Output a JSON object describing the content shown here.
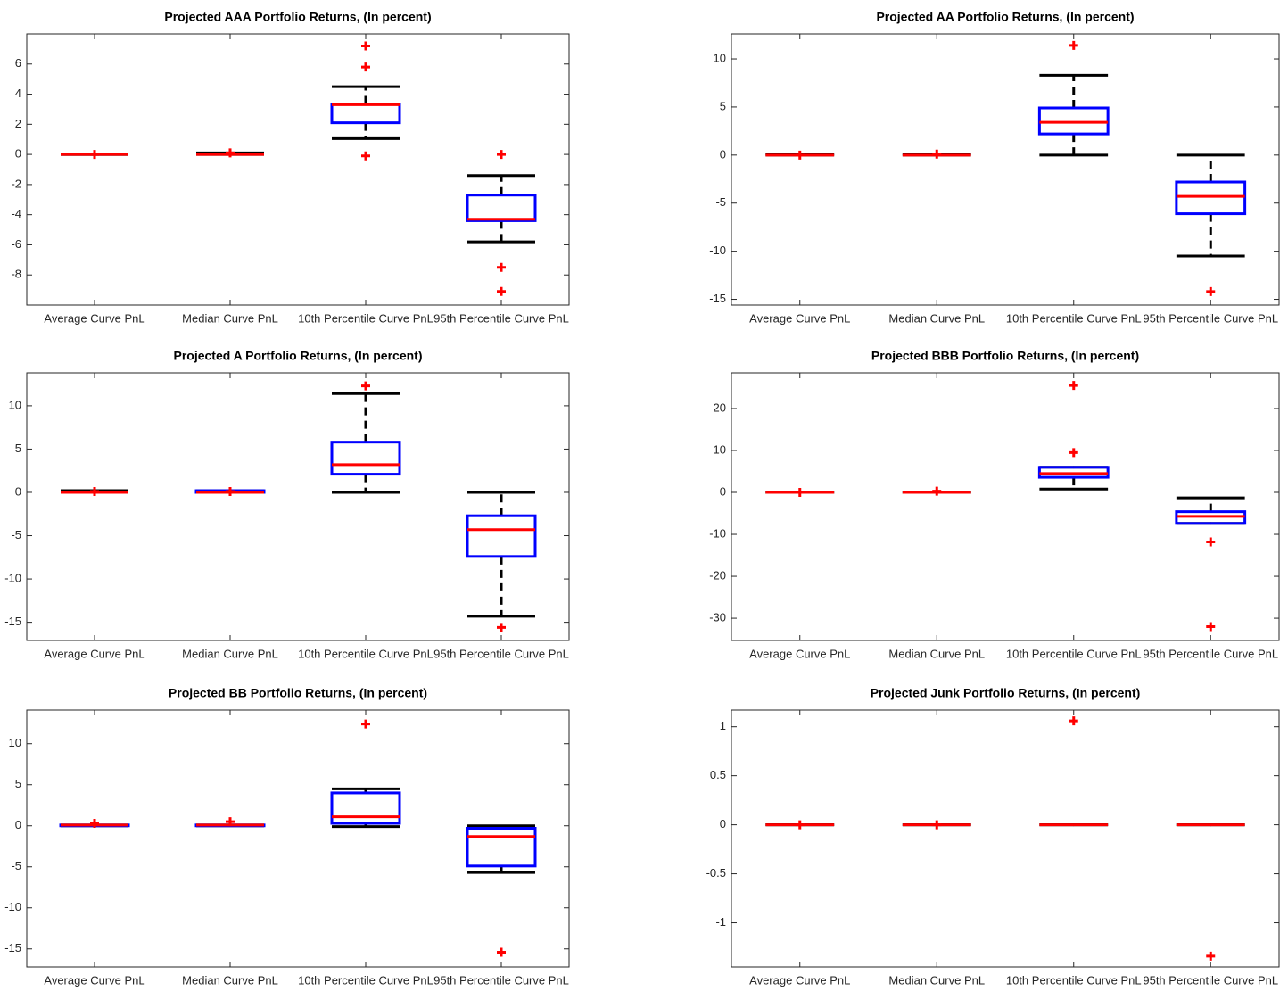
{
  "chart_data": [
    {
      "type": "box",
      "title": "Projected AAA Portfolio Returns, (In percent)",
      "categories": [
        "Average Curve PnL",
        "Median Curve PnL",
        "10th Percentile Curve PnL",
        "95th Percentile Curve PnL"
      ],
      "ylim": [
        -10,
        8
      ],
      "yticks": [
        -8,
        -6,
        -4,
        -2,
        0,
        2,
        4,
        6
      ],
      "boxes": [
        {
          "whisker_low": 0,
          "q1": 0,
          "median": 0,
          "q3": 0,
          "whisker_high": 0,
          "outliers": [
            0
          ]
        },
        {
          "whisker_low": 0,
          "q1": 0,
          "median": 0,
          "q3": 0,
          "whisker_high": 0.1,
          "outliers": [
            0.1
          ]
        },
        {
          "whisker_low": 1.05,
          "q1": 2.1,
          "median": 3.3,
          "q3": 3.35,
          "whisker_high": 4.5,
          "outliers": [
            7.2,
            5.8,
            -0.1
          ]
        },
        {
          "whisker_low": -5.8,
          "q1": -4.4,
          "median": -4.3,
          "q3": -2.7,
          "whisker_high": -1.4,
          "outliers": [
            0,
            -7.5,
            -9.1
          ]
        }
      ]
    },
    {
      "type": "box",
      "title": "Projected AA Portfolio Returns, (In percent)",
      "categories": [
        "Average Curve PnL",
        "Median Curve PnL",
        "10th Percentile Curve PnL",
        "95th Percentile Curve PnL"
      ],
      "ylim": [
        -15.6,
        12.6
      ],
      "yticks": [
        -15,
        -10,
        -5,
        0,
        5,
        10
      ],
      "boxes": [
        {
          "whisker_low": 0,
          "q1": 0,
          "median": 0,
          "q3": 0,
          "whisker_high": 0.1,
          "outliers": [
            0
          ]
        },
        {
          "whisker_low": 0,
          "q1": 0,
          "median": 0,
          "q3": 0,
          "whisker_high": 0.1,
          "outliers": [
            0.1
          ]
        },
        {
          "whisker_low": 0,
          "q1": 2.2,
          "median": 3.4,
          "q3": 4.9,
          "whisker_high": 8.3,
          "outliers": [
            11.4
          ]
        },
        {
          "whisker_low": -10.5,
          "q1": -6.1,
          "median": -4.3,
          "q3": -2.8,
          "whisker_high": 0,
          "outliers": [
            -14.2
          ]
        }
      ]
    },
    {
      "type": "box",
      "title": "Projected A Portfolio Returns, (In percent)",
      "categories": [
        "Average Curve PnL",
        "Median Curve PnL",
        "10th Percentile Curve PnL",
        "95th Percentile Curve PnL"
      ],
      "ylim": [
        -17.1,
        13.8
      ],
      "yticks": [
        -15,
        -10,
        -5,
        0,
        5,
        10
      ],
      "boxes": [
        {
          "whisker_low": 0,
          "q1": 0,
          "median": 0,
          "q3": 0,
          "whisker_high": 0.2,
          "outliers": [
            0.1
          ]
        },
        {
          "whisker_low": 0,
          "q1": 0,
          "median": 0,
          "q3": 0.2,
          "whisker_high": 0.2,
          "outliers": [
            0.1
          ]
        },
        {
          "whisker_low": 0,
          "q1": 2.1,
          "median": 3.2,
          "q3": 5.8,
          "whisker_high": 11.4,
          "outliers": [
            12.3
          ]
        },
        {
          "whisker_low": -14.3,
          "q1": -7.4,
          "median": -4.3,
          "q3": -2.7,
          "whisker_high": 0,
          "outliers": [
            -15.6
          ]
        }
      ]
    },
    {
      "type": "box",
      "title": "Projected BBB Portfolio Returns, (In percent)",
      "categories": [
        "Average Curve PnL",
        "Median Curve PnL",
        "10th Percentile Curve PnL",
        "95th Percentile Curve PnL"
      ],
      "ylim": [
        -35.3,
        28.5
      ],
      "yticks": [
        -30,
        -20,
        -10,
        0,
        10,
        20
      ],
      "boxes": [
        {
          "whisker_low": 0,
          "q1": 0,
          "median": 0,
          "q3": 0,
          "whisker_high": 0,
          "outliers": [
            0
          ]
        },
        {
          "whisker_low": 0,
          "q1": 0,
          "median": 0,
          "q3": 0,
          "whisker_high": 0,
          "outliers": [
            0.3
          ]
        },
        {
          "whisker_low": 0.8,
          "q1": 3.6,
          "median": 4.5,
          "q3": 6,
          "whisker_high": 6,
          "outliers": [
            9.5,
            25.5
          ]
        },
        {
          "whisker_low": -7.4,
          "q1": -7.4,
          "median": -5.7,
          "q3": -4.6,
          "whisker_high": -1.3,
          "outliers": [
            -11.8,
            -32
          ]
        }
      ]
    },
    {
      "type": "box",
      "title": "Projected BB Portfolio Returns, (In percent)",
      "categories": [
        "Average Curve PnL",
        "Median Curve PnL",
        "10th Percentile Curve PnL",
        "95th Percentile Curve PnL"
      ],
      "ylim": [
        -17.2,
        14.1
      ],
      "yticks": [
        -15,
        -10,
        -5,
        0,
        5,
        10
      ],
      "boxes": [
        {
          "whisker_low": 0,
          "q1": 0,
          "median": 0.1,
          "q3": 0.1,
          "whisker_high": 0.1,
          "outliers": [
            0.3
          ]
        },
        {
          "whisker_low": 0,
          "q1": 0,
          "median": 0.1,
          "q3": 0.1,
          "whisker_high": 0.1,
          "outliers": [
            0.5
          ]
        },
        {
          "whisker_low": -0.1,
          "q1": 0.3,
          "median": 1.1,
          "q3": 4,
          "whisker_high": 4.5,
          "outliers": [
            12.4
          ]
        },
        {
          "whisker_low": -5.7,
          "q1": -4.9,
          "median": -1.3,
          "q3": -0.3,
          "whisker_high": 0,
          "outliers": [
            -15.4
          ]
        }
      ]
    },
    {
      "type": "box",
      "title": "Projected Junk Portfolio Returns, (In percent)",
      "categories": [
        "Average Curve PnL",
        "Median Curve PnL",
        "10th Percentile Curve PnL",
        "95th Percentile Curve PnL"
      ],
      "ylim": [
        -1.45,
        1.17
      ],
      "yticks": [
        -1,
        -0.5,
        0,
        0.5,
        1
      ],
      "boxes": [
        {
          "whisker_low": 0,
          "q1": 0,
          "median": 0,
          "q3": 0,
          "whisker_high": 0,
          "outliers": [
            0
          ]
        },
        {
          "whisker_low": 0,
          "q1": 0,
          "median": 0,
          "q3": 0,
          "whisker_high": 0,
          "outliers": [
            0
          ]
        },
        {
          "whisker_low": 0,
          "q1": 0,
          "median": 0,
          "q3": 0,
          "whisker_high": 0,
          "outliers": [
            1.06
          ]
        },
        {
          "whisker_low": 0,
          "q1": 0,
          "median": 0,
          "q3": 0,
          "whisker_high": 0,
          "outliers": [
            -1.34
          ]
        }
      ]
    }
  ]
}
